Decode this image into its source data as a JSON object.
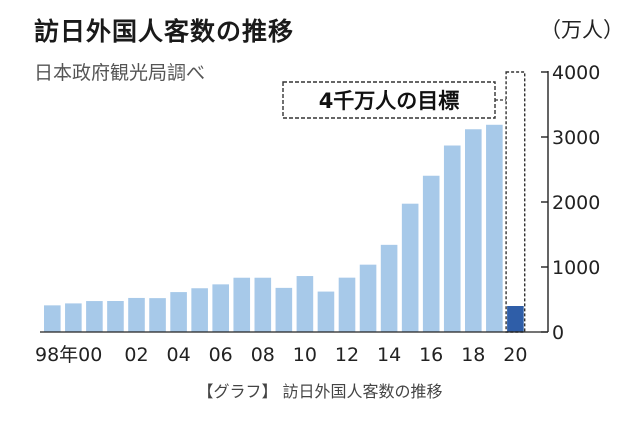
{
  "chart_data": {
    "type": "bar",
    "title": "訪日外国人客数の推移",
    "subtitle": "日本政府観光局調べ",
    "unit_label": "（万人）",
    "caption": "【グラフ】 訪日外国人客数の推移",
    "categories": [
      "1998",
      "1999",
      "2000",
      "2001",
      "2002",
      "2003",
      "2004",
      "2005",
      "2006",
      "2007",
      "2008",
      "2009",
      "2010",
      "2011",
      "2012",
      "2013",
      "2014",
      "2015",
      "2016",
      "2017",
      "2018",
      "2019",
      "2020"
    ],
    "x_tick_labels": [
      {
        "category": "1998",
        "label": "98年00"
      },
      {
        "category": "2002",
        "label": "02"
      },
      {
        "category": "2004",
        "label": "04"
      },
      {
        "category": "2006",
        "label": "06"
      },
      {
        "category": "2008",
        "label": "08"
      },
      {
        "category": "2010",
        "label": "10"
      },
      {
        "category": "2012",
        "label": "12"
      },
      {
        "category": "2014",
        "label": "14"
      },
      {
        "category": "2016",
        "label": "16"
      },
      {
        "category": "2018",
        "label": "18"
      },
      {
        "category": "2020",
        "label": "20"
      }
    ],
    "values": [
      410,
      440,
      476,
      477,
      524,
      521,
      614,
      673,
      733,
      835,
      835,
      679,
      861,
      622,
      836,
      1036,
      1341,
      1974,
      2404,
      2869,
      3119,
      3188,
      400
    ],
    "target": {
      "category": "2020",
      "value": 4000,
      "label": "4千万人の目標"
    },
    "ylim": [
      0,
      4000
    ],
    "yticks": [
      0,
      1000,
      2000,
      3000,
      4000
    ],
    "colors": {
      "bar": "#a7c9e9",
      "highlight": "#2f5ea8",
      "target_outline": "#333333",
      "axis": "#222222"
    },
    "grid": false,
    "legend": "none"
  }
}
